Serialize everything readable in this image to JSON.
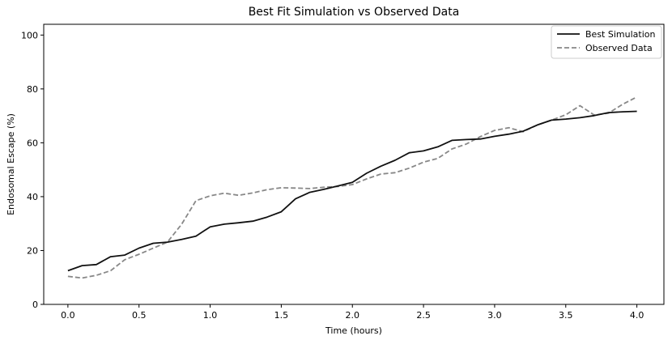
{
  "chart_data": {
    "type": "line",
    "title": "Best Fit Simulation vs Observed Data",
    "xlabel": "Time (hours)",
    "ylabel": "Endosomal Escape (%)",
    "xlim": [
      -0.17,
      4.19
    ],
    "ylim": [
      0,
      104
    ],
    "xticks": [
      0.0,
      0.5,
      1.0,
      1.5,
      2.0,
      2.5,
      3.0,
      3.5,
      4.0
    ],
    "xtick_labels": [
      "0.0",
      "0.5",
      "1.0",
      "1.5",
      "2.0",
      "2.5",
      "3.0",
      "3.5",
      "4.0"
    ],
    "yticks": [
      0,
      20,
      40,
      60,
      80,
      100
    ],
    "ytick_labels": [
      "0",
      "20",
      "40",
      "60",
      "80",
      "100"
    ],
    "grid": false,
    "legend_position": "top-right",
    "x": [
      0.0,
      0.1,
      0.2,
      0.3,
      0.4,
      0.5,
      0.6,
      0.7,
      0.8,
      0.9,
      1.0,
      1.1,
      1.2,
      1.3,
      1.4,
      1.5,
      1.6,
      1.7,
      1.8,
      1.9,
      2.0,
      2.1,
      2.2,
      2.3,
      2.4,
      2.5,
      2.6,
      2.7,
      2.8,
      2.9,
      3.0,
      3.1,
      3.2,
      3.3,
      3.4,
      3.5,
      3.6,
      3.7,
      3.8,
      3.9,
      4.0
    ],
    "series": [
      {
        "name": "Best Simulation",
        "color": "#111111",
        "dash": "solid",
        "values": [
          12.5,
          14.4,
          14.8,
          17.7,
          18.3,
          20.9,
          22.7,
          23.1,
          24.1,
          25.3,
          28.8,
          29.8,
          30.3,
          30.9,
          32.4,
          34.4,
          39.2,
          41.6,
          42.7,
          44.0,
          45.3,
          48.7,
          51.3,
          53.5,
          56.3,
          57.0,
          58.5,
          60.9,
          61.2,
          61.4,
          62.4,
          63.2,
          64.3,
          66.6,
          68.4,
          68.8,
          69.3,
          70.1,
          71.2,
          71.5,
          71.7
        ]
      },
      {
        "name": "Observed Data",
        "color": "#888888",
        "dash": "dashed",
        "values": [
          10.4,
          9.8,
          10.8,
          12.5,
          16.6,
          18.6,
          20.9,
          23.1,
          29.8,
          38.5,
          40.3,
          41.3,
          40.5,
          41.4,
          42.6,
          43.3,
          43.2,
          43.0,
          43.5,
          43.8,
          44.5,
          46.6,
          48.4,
          48.9,
          50.6,
          52.8,
          54.2,
          57.7,
          59.5,
          62.3,
          64.6,
          65.6,
          64.1,
          66.6,
          68.4,
          70.4,
          73.8,
          70.3,
          71.0,
          74.3,
          77.0
        ]
      }
    ]
  }
}
